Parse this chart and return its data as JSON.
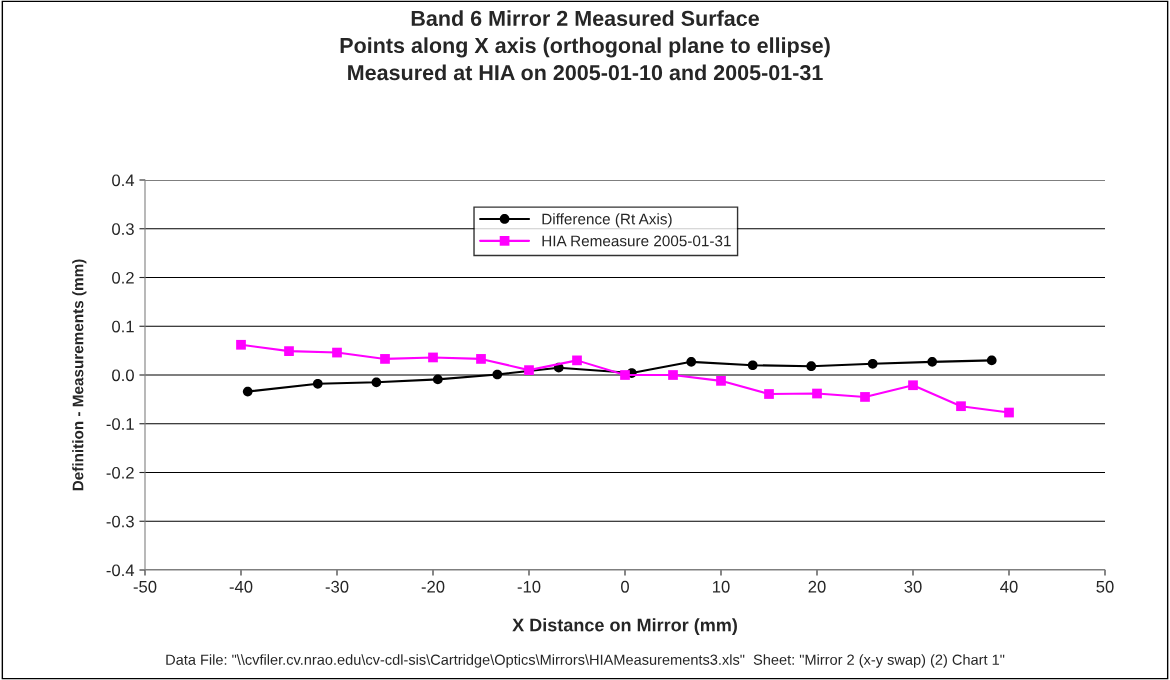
{
  "chart_data": {
    "type": "line",
    "title": "Band 6 Mirror 2 Measured Surface\nPoints along X axis (orthogonal plane to ellipse)\nMeasured at HIA on 2005-01-10 and 2005-01-31",
    "xlabel": "X Distance on Mirror (mm)",
    "ylabel": "Definition - Measurements (mm)",
    "annotations": [
      "Data File: \"\\\\cvfiler.cv.nrao.edu\\cv-cdl-sis\\Cartridge\\Optics\\Mirrors\\HIAMeasurements3.xls\"  Sheet: \"Mirror 2 (x-y swap) (2) Chart 1\""
    ],
    "series": [
      {
        "name": "Difference (Rt Axis)",
        "color": "#000000",
        "marker": "circle",
        "x": [
          -39.3,
          -32.0,
          -25.9,
          -19.5,
          -13.3,
          -6.9,
          0.7,
          6.9,
          13.3,
          19.4,
          25.8,
          32.0,
          38.2
        ],
        "values": [
          -0.034,
          -0.018,
          -0.015,
          -0.009,
          0.001,
          0.015,
          0.004,
          0.027,
          0.02,
          0.018,
          0.023,
          0.027,
          0.03
        ]
      },
      {
        "name": "HIA Remeasure 2005-01-31",
        "color": "#ff00ff",
        "marker": "square",
        "x": [
          -40,
          -35,
          -30,
          -25,
          -20,
          -15,
          -10,
          -5,
          0,
          5,
          10,
          15,
          20,
          25,
          30,
          35,
          40
        ],
        "values": [
          0.062,
          0.049,
          0.046,
          0.033,
          0.036,
          0.033,
          0.01,
          0.03,
          0.0,
          0.0,
          -0.012,
          -0.039,
          -0.038,
          -0.045,
          -0.021,
          -0.064,
          -0.077
        ]
      }
    ],
    "xlim": [
      -50,
      50
    ],
    "xticks": [
      -50,
      -40,
      -30,
      -20,
      -10,
      0,
      10,
      20,
      30,
      40,
      50
    ],
    "ylim": [
      -0.4,
      0.4
    ],
    "yticks": [
      {
        "value": -0.4,
        "label": "-0.4"
      },
      {
        "value": -0.3,
        "label": "-0.3"
      },
      {
        "value": -0.2,
        "label": "-0.2"
      },
      {
        "value": -0.1,
        "label": "-0.1"
      },
      {
        "value": 0,
        "label": "0.0"
      },
      {
        "value": 0.1,
        "label": "0.1"
      },
      {
        "value": 0.2,
        "label": "0.2"
      },
      {
        "value": 0.3,
        "label": "0.3"
      },
      {
        "value": 0.4,
        "label": "0.4"
      }
    ],
    "grid": "y",
    "legend": "top",
    "line_style": "solid"
  }
}
